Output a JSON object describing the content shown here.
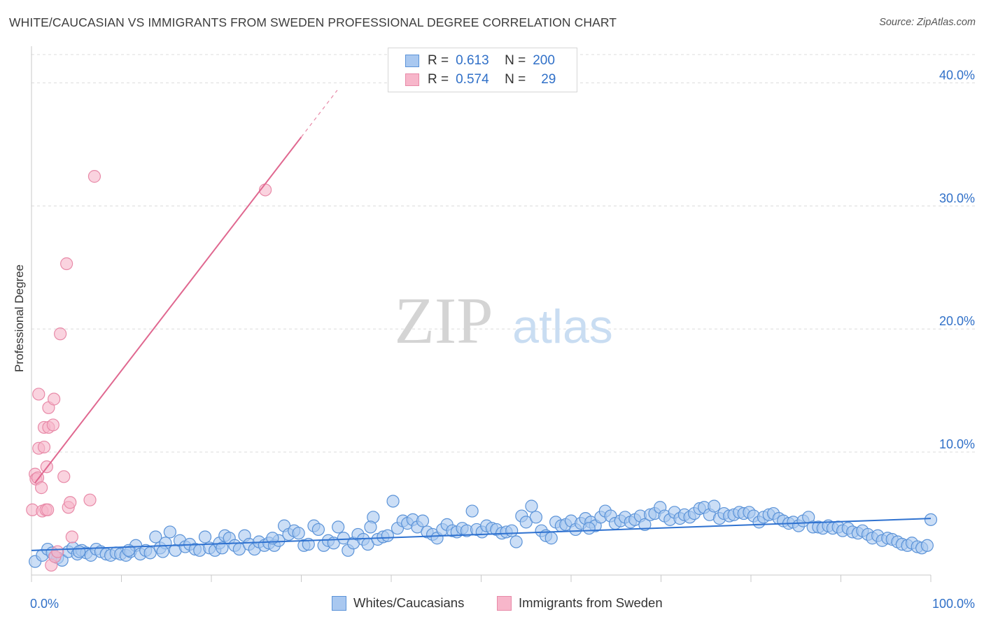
{
  "title": "WHITE/CAUCASIAN VS IMMIGRANTS FROM SWEDEN PROFESSIONAL DEGREE CORRELATION CHART",
  "source": "Source: ZipAtlas.com",
  "watermark": {
    "zip": "ZIP",
    "atlas": "atlas"
  },
  "colors": {
    "blue_fill": "#a9c8f0",
    "blue_stroke": "#5b93d8",
    "blue_line": "#2f72d0",
    "pink_fill": "#f7b6ca",
    "pink_stroke": "#e88aa8",
    "pink_line": "#e06890",
    "accent_text": "#3070c8"
  },
  "legend_top": [
    {
      "r_label": "R =",
      "r_value": "0.613",
      "n_label": "N =",
      "n_value": "200"
    },
    {
      "r_label": "R =",
      "r_value": "0.574",
      "n_label": "N =",
      "n_value": "29"
    }
  ],
  "chart_data": {
    "type": "scatter",
    "title": "WHITE/CAUCASIAN VS IMMIGRANTS FROM SWEDEN PROFESSIONAL DEGREE CORRELATION CHART",
    "xlabel": "",
    "ylabel": "Professional Degree",
    "xlim": [
      0,
      100
    ],
    "ylim": [
      0,
      42.3
    ],
    "x_tick_labels": [
      "0.0%",
      "100.0%"
    ],
    "y_ticks": [
      10,
      20,
      30,
      40
    ],
    "y_tick_labels": [
      "10.0%",
      "20.0%",
      "30.0%",
      "40.0%"
    ],
    "legend": [
      "Whites/Caucasians",
      "Immigrants from Sweden"
    ],
    "series": [
      {
        "name": "Whites/Caucasians",
        "color": "#5b93d8",
        "trend": {
          "x": [
            0,
            100
          ],
          "y": [
            2.0,
            4.6
          ]
        },
        "points": [
          [
            0.4,
            1.1
          ],
          [
            1.2,
            1.6
          ],
          [
            1.8,
            2.1
          ],
          [
            2.3,
            1.8
          ],
          [
            2.9,
            1.4
          ],
          [
            3.4,
            1.2
          ],
          [
            4.1,
            1.9
          ],
          [
            4.6,
            2.2
          ],
          [
            5.1,
            1.7
          ],
          [
            5.6,
            2.0
          ],
          [
            6.1,
            1.8
          ],
          [
            6.6,
            1.6
          ],
          [
            7.2,
            2.1
          ],
          [
            7.7,
            1.9
          ],
          [
            8.3,
            1.7
          ],
          [
            8.8,
            1.6
          ],
          [
            9.4,
            1.8
          ],
          [
            9.9,
            1.7
          ],
          [
            10.5,
            1.6
          ],
          [
            11.0,
            1.9
          ],
          [
            11.6,
            2.4
          ],
          [
            12.1,
            1.7
          ],
          [
            12.7,
            2.0
          ],
          [
            13.2,
            1.8
          ],
          [
            13.8,
            3.1
          ],
          [
            14.3,
            2.2
          ],
          [
            14.9,
            2.6
          ],
          [
            15.4,
            3.5
          ],
          [
            16.0,
            2.0
          ],
          [
            16.5,
            2.8
          ],
          [
            17.1,
            2.3
          ],
          [
            17.6,
            2.5
          ],
          [
            18.2,
            2.1
          ],
          [
            18.7,
            2.0
          ],
          [
            19.3,
            3.1
          ],
          [
            19.8,
            2.2
          ],
          [
            20.4,
            2.0
          ],
          [
            20.9,
            2.6
          ],
          [
            21.5,
            3.2
          ],
          [
            22.0,
            3.0
          ],
          [
            22.6,
            2.4
          ],
          [
            23.1,
            2.1
          ],
          [
            23.7,
            3.2
          ],
          [
            24.2,
            2.5
          ],
          [
            24.8,
            2.1
          ],
          [
            25.3,
            2.7
          ],
          [
            25.9,
            2.4
          ],
          [
            26.4,
            2.6
          ],
          [
            27.0,
            2.4
          ],
          [
            27.5,
            2.8
          ],
          [
            28.1,
            4.0
          ],
          [
            28.6,
            3.3
          ],
          [
            29.2,
            3.6
          ],
          [
            29.7,
            3.4
          ],
          [
            30.3,
            2.4
          ],
          [
            30.8,
            2.5
          ],
          [
            31.4,
            4.0
          ],
          [
            31.9,
            3.7
          ],
          [
            32.5,
            2.4
          ],
          [
            33.0,
            2.8
          ],
          [
            33.6,
            2.6
          ],
          [
            34.1,
            3.9
          ],
          [
            34.7,
            3.0
          ],
          [
            35.2,
            2.0
          ],
          [
            35.8,
            2.6
          ],
          [
            36.3,
            3.3
          ],
          [
            36.9,
            2.9
          ],
          [
            37.4,
            2.5
          ],
          [
            38.0,
            4.7
          ],
          [
            38.5,
            2.9
          ],
          [
            39.1,
            3.1
          ],
          [
            39.6,
            3.2
          ],
          [
            40.2,
            6.0
          ],
          [
            40.7,
            3.8
          ],
          [
            41.3,
            4.4
          ],
          [
            41.8,
            4.2
          ],
          [
            42.4,
            4.5
          ],
          [
            42.9,
            3.9
          ],
          [
            43.5,
            4.4
          ],
          [
            44.0,
            3.5
          ],
          [
            44.6,
            3.3
          ],
          [
            45.1,
            3.0
          ],
          [
            45.7,
            3.7
          ],
          [
            46.2,
            4.1
          ],
          [
            46.8,
            3.6
          ],
          [
            47.3,
            3.5
          ],
          [
            47.9,
            3.8
          ],
          [
            48.4,
            3.6
          ],
          [
            49.0,
            5.2
          ],
          [
            49.5,
            3.7
          ],
          [
            50.1,
            3.5
          ],
          [
            50.6,
            4.0
          ],
          [
            51.2,
            3.8
          ],
          [
            51.7,
            3.7
          ],
          [
            52.3,
            3.4
          ],
          [
            52.8,
            3.5
          ],
          [
            53.4,
            3.6
          ],
          [
            53.9,
            2.7
          ],
          [
            54.5,
            4.8
          ],
          [
            55.0,
            4.3
          ],
          [
            55.6,
            5.6
          ],
          [
            56.1,
            4.7
          ],
          [
            56.7,
            3.6
          ],
          [
            57.2,
            3.2
          ],
          [
            57.8,
            3.0
          ],
          [
            58.3,
            4.3
          ],
          [
            58.9,
            4.0
          ],
          [
            59.4,
            4.1
          ],
          [
            60.0,
            4.4
          ],
          [
            60.5,
            3.7
          ],
          [
            61.1,
            4.2
          ],
          [
            61.6,
            4.6
          ],
          [
            62.2,
            4.3
          ],
          [
            62.7,
            4.0
          ],
          [
            63.3,
            4.7
          ],
          [
            63.8,
            5.2
          ],
          [
            64.4,
            4.8
          ],
          [
            64.9,
            4.2
          ],
          [
            65.5,
            4.4
          ],
          [
            66.0,
            4.7
          ],
          [
            66.6,
            4.3
          ],
          [
            67.1,
            4.5
          ],
          [
            67.7,
            4.8
          ],
          [
            68.2,
            4.1
          ],
          [
            68.8,
            4.9
          ],
          [
            69.3,
            5.0
          ],
          [
            69.9,
            5.5
          ],
          [
            70.4,
            4.8
          ],
          [
            71.0,
            4.5
          ],
          [
            71.5,
            5.1
          ],
          [
            72.1,
            4.6
          ],
          [
            72.6,
            4.9
          ],
          [
            73.2,
            4.7
          ],
          [
            73.7,
            5.0
          ],
          [
            74.3,
            5.4
          ],
          [
            74.8,
            5.5
          ],
          [
            75.4,
            4.9
          ],
          [
            75.9,
            5.6
          ],
          [
            76.5,
            4.6
          ],
          [
            77.0,
            5.0
          ],
          [
            77.6,
            4.8
          ],
          [
            78.1,
            4.9
          ],
          [
            78.7,
            5.1
          ],
          [
            79.2,
            5.0
          ],
          [
            79.8,
            5.1
          ],
          [
            80.3,
            4.8
          ],
          [
            80.9,
            4.3
          ],
          [
            81.4,
            4.7
          ],
          [
            82.0,
            4.9
          ],
          [
            82.5,
            5.0
          ],
          [
            83.1,
            4.6
          ],
          [
            83.6,
            4.4
          ],
          [
            84.2,
            4.2
          ],
          [
            84.7,
            4.3
          ],
          [
            85.3,
            4.0
          ],
          [
            85.8,
            4.4
          ],
          [
            86.4,
            4.7
          ],
          [
            86.9,
            3.9
          ],
          [
            87.5,
            3.9
          ],
          [
            88.0,
            3.8
          ],
          [
            88.6,
            4.0
          ],
          [
            89.1,
            3.8
          ],
          [
            89.7,
            3.9
          ],
          [
            90.2,
            3.6
          ],
          [
            90.8,
            3.8
          ],
          [
            91.3,
            3.5
          ],
          [
            91.9,
            3.4
          ],
          [
            92.4,
            3.6
          ],
          [
            93.0,
            3.3
          ],
          [
            93.5,
            3.0
          ],
          [
            94.1,
            3.2
          ],
          [
            94.6,
            2.8
          ],
          [
            95.2,
            3.0
          ],
          [
            95.7,
            2.9
          ],
          [
            96.3,
            2.7
          ],
          [
            96.8,
            2.5
          ],
          [
            97.4,
            2.4
          ],
          [
            97.9,
            2.6
          ],
          [
            98.5,
            2.3
          ],
          [
            99.0,
            2.2
          ],
          [
            99.6,
            2.4
          ],
          [
            100.0,
            4.5
          ],
          [
            2.6,
            1.5
          ],
          [
            5.3,
            1.9
          ],
          [
            10.8,
            2.0
          ],
          [
            14.6,
            1.9
          ],
          [
            21.2,
            2.2
          ],
          [
            26.8,
            3.0
          ],
          [
            37.7,
            3.9
          ],
          [
            62.0,
            3.8
          ]
        ]
      },
      {
        "name": "Immigrants from Sweden",
        "color": "#e88aa8",
        "trend": {
          "x": [
            0.4,
            30.0
          ],
          "y": [
            7.5,
            35.6
          ]
        },
        "trend_dashed": {
          "x": [
            30.0,
            34.0
          ],
          "y": [
            35.6,
            39.4
          ]
        },
        "points": [
          [
            0.1,
            5.3
          ],
          [
            0.4,
            8.2
          ],
          [
            0.5,
            7.8
          ],
          [
            0.7,
            7.9
          ],
          [
            0.8,
            14.7
          ],
          [
            0.8,
            10.3
          ],
          [
            1.1,
            7.1
          ],
          [
            1.2,
            5.2
          ],
          [
            1.4,
            12.0
          ],
          [
            1.4,
            10.4
          ],
          [
            1.6,
            5.3
          ],
          [
            1.7,
            8.8
          ],
          [
            1.8,
            5.3
          ],
          [
            1.9,
            12.0
          ],
          [
            1.9,
            13.6
          ],
          [
            2.2,
            0.8
          ],
          [
            2.4,
            12.2
          ],
          [
            2.5,
            14.3
          ],
          [
            2.6,
            1.5
          ],
          [
            2.9,
            1.9
          ],
          [
            3.2,
            19.6
          ],
          [
            3.6,
            8.0
          ],
          [
            3.9,
            25.3
          ],
          [
            4.1,
            5.5
          ],
          [
            4.3,
            5.9
          ],
          [
            4.5,
            3.1
          ],
          [
            6.5,
            6.1
          ],
          [
            7.0,
            32.4
          ],
          [
            26.0,
            31.3
          ]
        ]
      }
    ]
  }
}
